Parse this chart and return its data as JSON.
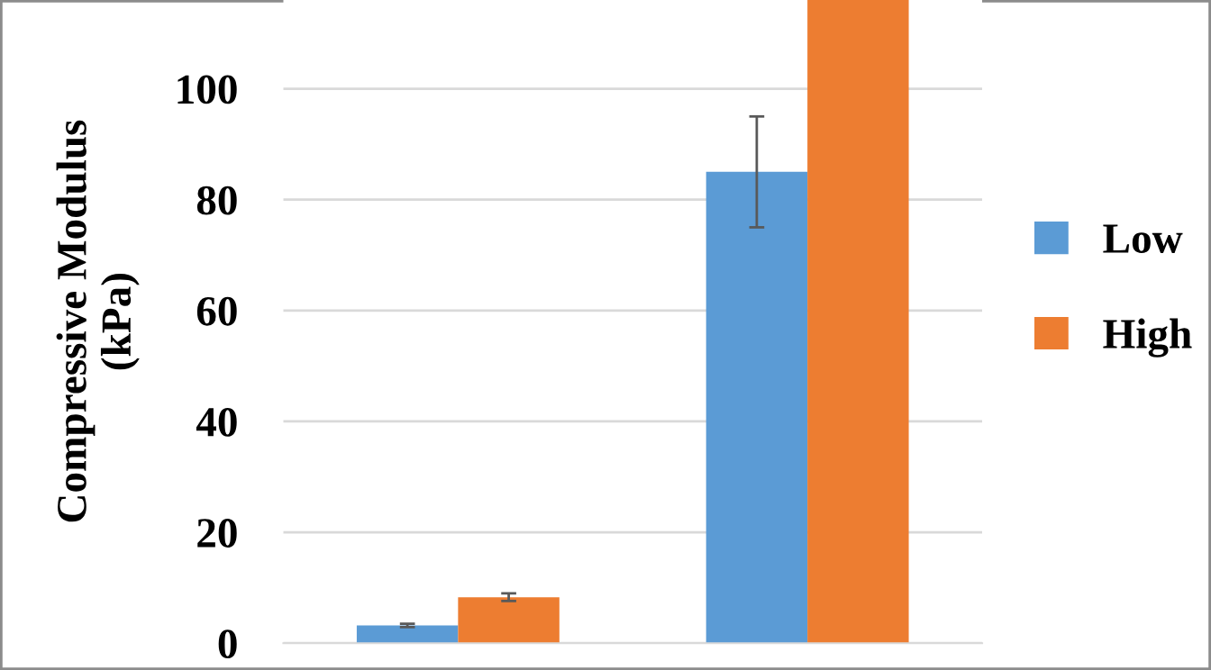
{
  "chart_data": {
    "type": "bar",
    "ylabel": "Compressive Modulus\n(kPa)",
    "categories": [
      null,
      null
    ],
    "series": [
      {
        "name": "Low",
        "color": "#5b9bd5",
        "values": [
          3.2,
          85
        ],
        "errors": [
          0.3,
          10
        ]
      },
      {
        "name": "High",
        "color": "#ed7d31",
        "values": [
          8.3,
          116
        ],
        "errors": [
          0.7,
          null
        ]
      }
    ],
    "ylim": [
      0,
      116
    ],
    "yticks": [
      0,
      20,
      40,
      60,
      80,
      100
    ],
    "grid": "y",
    "legend": "right"
  }
}
